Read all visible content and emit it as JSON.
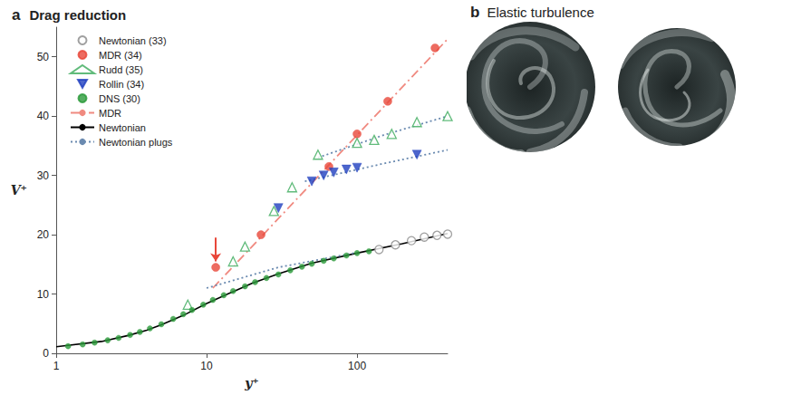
{
  "chart_data": {
    "type": "scatter",
    "letter": "a",
    "title": "Drag reduction",
    "x_label": "y⁺",
    "y_label": "V⁺",
    "log": "x",
    "grid": false,
    "legend": "upper left",
    "xlim": [
      1,
      400
    ],
    "xticks": [
      1,
      10,
      100
    ],
    "ylim": [
      0,
      55
    ],
    "yticks": [
      0,
      10,
      20,
      30,
      40,
      50
    ],
    "arrow": {
      "x": 11.5,
      "y": [
        19.5,
        15.5
      ],
      "color": "#e8473a"
    },
    "series": [
      {
        "name": "Newtonian (33)",
        "type": "scatter",
        "marker": "open-circle",
        "color": "#888888",
        "x": [
          140,
          180,
          230,
          280,
          340,
          400
        ],
        "values": [
          17.5,
          18.3,
          19.0,
          19.6,
          19.9,
          20.1
        ]
      },
      {
        "name": "MDR (34)",
        "type": "scatter",
        "marker": "circle",
        "color": "#e8473a",
        "x": [
          11.5,
          23,
          65,
          100,
          160,
          330
        ],
        "values": [
          14.5,
          20,
          31.5,
          37,
          42.5,
          51.5
        ]
      },
      {
        "name": "Rudd (35)",
        "type": "scatter",
        "marker": "open-triangle",
        "color": "#3aaa5a",
        "x": [
          7.5,
          15,
          18,
          28,
          37,
          55,
          100,
          130,
          170,
          250,
          400
        ],
        "values": [
          8.2,
          15.5,
          18,
          24,
          28,
          33.5,
          35.5,
          36,
          37,
          39,
          40
        ]
      },
      {
        "name": "Rollin (34)",
        "type": "scatter",
        "marker": "triangle-down",
        "color": "#1f3fbf",
        "x": [
          30,
          50,
          60,
          70,
          85,
          100,
          250
        ],
        "values": [
          24.5,
          29,
          30,
          30.5,
          31,
          31.3,
          33.5
        ]
      },
      {
        "name": "DNS (30)",
        "type": "scatter",
        "marker": "circle",
        "color": "#2a9a3a",
        "x": [
          1.2,
          1.5,
          1.8,
          2.2,
          2.6,
          3.1,
          3.6,
          4.2,
          5,
          6,
          7,
          8,
          9.5,
          11,
          13,
          15,
          18,
          21,
          25,
          30,
          36,
          43,
          50,
          60,
          70,
          85,
          100,
          120
        ],
        "values": [
          1.2,
          1.5,
          1.8,
          2.2,
          2.6,
          3.1,
          3.6,
          4.2,
          4.9,
          5.8,
          6.6,
          7.3,
          8.2,
          9,
          9.8,
          10.5,
          11.3,
          12,
          12.7,
          13.3,
          14,
          14.6,
          15.1,
          15.6,
          16,
          16.5,
          16.9,
          17.2
        ]
      },
      {
        "name": "MDR",
        "type": "line",
        "line_style": "dashdot",
        "color": "#f08a80",
        "x": [
          11,
          400
        ],
        "values": [
          11,
          53
        ]
      },
      {
        "name": "Newtonian",
        "type": "line",
        "line_style": "solid",
        "color": "#000000",
        "x": [
          1,
          2,
          3,
          4,
          5,
          7,
          10,
          15,
          20,
          30,
          50,
          100,
          200,
          400
        ],
        "values": [
          1.1,
          2,
          3,
          3.9,
          4.8,
          6.4,
          8.4,
          10.4,
          11.8,
          13.4,
          15.2,
          16.9,
          18.5,
          20.2
        ]
      },
      {
        "name": "Newtonian plugs",
        "type": "line",
        "line_style": "dotted",
        "color": "#6a8ab0",
        "x": [
          10,
          30,
          100,
          100,
          55,
          150,
          400,
          400,
          45,
          150,
          400
        ],
        "values": [
          11,
          14.5,
          17,
          null,
          33,
          36.8,
          40,
          null,
          29,
          32,
          34.3
        ]
      }
    ]
  },
  "panel_b": {
    "letter": "b",
    "title": "Elastic turbulence"
  }
}
